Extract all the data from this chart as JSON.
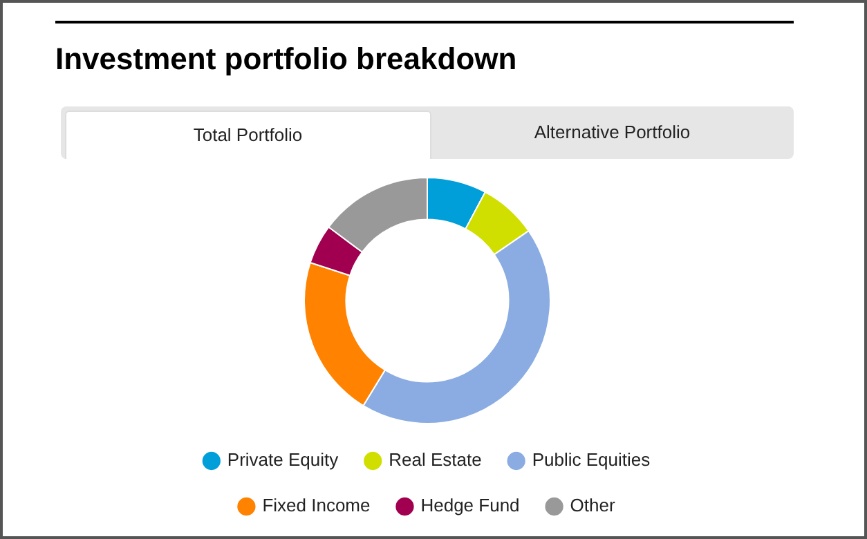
{
  "chart_data": {
    "type": "donut",
    "title": "Investment portfolio breakdown",
    "annotations": [
      "Total Portfolio",
      "Alternative Portfolio"
    ],
    "categories": [
      "Private Equity",
      "Real Estate",
      "Public Equities",
      "Fixed Income",
      "Hedge Fund",
      "Other"
    ],
    "values": [
      7.8,
      7.6,
      43.3,
      21.3,
      5.2,
      14.8
    ],
    "colors": [
      "#009fda",
      "#d1df00",
      "#8aace2",
      "#ff8200",
      "#a0004f",
      "#999999"
    ],
    "legend": "bottom"
  }
}
